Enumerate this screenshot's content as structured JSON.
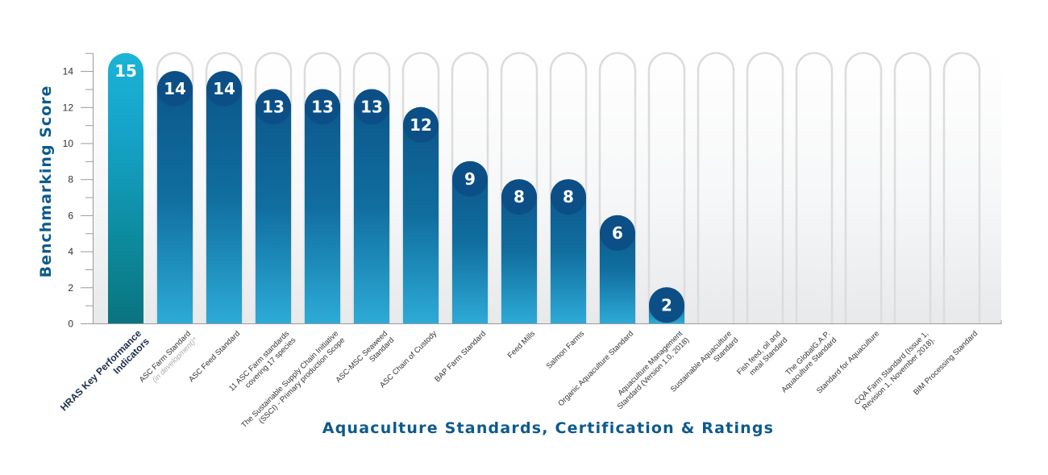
{
  "chart_data": {
    "type": "bar",
    "title": "",
    "xlabel": "Aquaculture Standards, Certification & Ratings",
    "ylabel": "Benchmarking Score",
    "ylim": [
      0,
      15
    ],
    "yticks": [
      0,
      2,
      4,
      6,
      8,
      10,
      12,
      14
    ],
    "grid": false,
    "legend": null,
    "categories": [
      "HRAS Key Performance Indicators",
      "ASC Farm Standard (in development)*",
      "ASC Feed Standard",
      "11 ASC Farm standards covering 17 species",
      "The Sustainable Supply Chain Initiative (SSCI) - Primary production Scope",
      "ASC-MSC Seaweed Standard",
      "ASC Chain of Custody",
      "BAP Farm Standard",
      "Feed Mills",
      "Salmon Farms",
      "Organic Aquaculture Standard",
      "Aquaculture Management Standard (Version 1.0, 2018)",
      "Sustainable Aquaculture Standard",
      "Fish feed, oil and meal Standard",
      "The GlobalG.A.P. Aquaculture Standard",
      "Standard for Aquaculture",
      "CQA Farm Standard (Issue 1, Revision 1, November 2018).",
      "BIM Processing Standard"
    ],
    "values": [
      15,
      14,
      14,
      13,
      13,
      13,
      12,
      9,
      8,
      8,
      6,
      2,
      0,
      0,
      0,
      0,
      0,
      0
    ],
    "value_labels": [
      "15",
      "14",
      "14",
      "13",
      "13",
      "13",
      "12",
      "9",
      "8",
      "8",
      "6",
      "2",
      "",
      "",
      "",
      "",
      "",
      ""
    ],
    "label_lines": [
      [
        "HRAS Key Performance",
        "Indicators"
      ],
      [
        "ASC Farm Standard",
        "(in development)*"
      ],
      [
        "ASC Feed Standard"
      ],
      [
        "11 ASC Farm standards",
        "covering 17 species"
      ],
      [
        "The Sustainable Supply Chain Initiative",
        "(SSCI) - Primary production Scope"
      ],
      [
        "ASC-MSC Seaweed",
        "Standard"
      ],
      [
        "ASC Chain of Custody"
      ],
      [
        "BAP Farm Standard"
      ],
      [
        "Feed Mills"
      ],
      [
        "Salmon Farms"
      ],
      [
        "Organic Aquaculture Standard"
      ],
      [
        "Aquaculture Management",
        "Standard (Version 1.0, 2018)"
      ],
      [
        "Sustainable Aquaculture",
        "Standard"
      ],
      [
        "Fish feed, oil and",
        "meal Standard"
      ],
      [
        "The GlobalG.A.P.",
        "Aquaculture Standard"
      ],
      [
        "Standard for Aquaculture"
      ],
      [
        "CQA Farm Standard (Issue 1,",
        "Revision 1, November 2018)."
      ],
      [
        "BIM Processing Standard"
      ]
    ],
    "colors": {
      "reference_bar_top": "#1ab4d6",
      "reference_bar_bottom": "#0a7a84",
      "bar_top": "#0d5a8c",
      "bar_bottom": "#2aa8d4",
      "badge": "#0b4f86",
      "outline": "#dcdcdc",
      "axis_title": "#0d5a8c"
    }
  }
}
